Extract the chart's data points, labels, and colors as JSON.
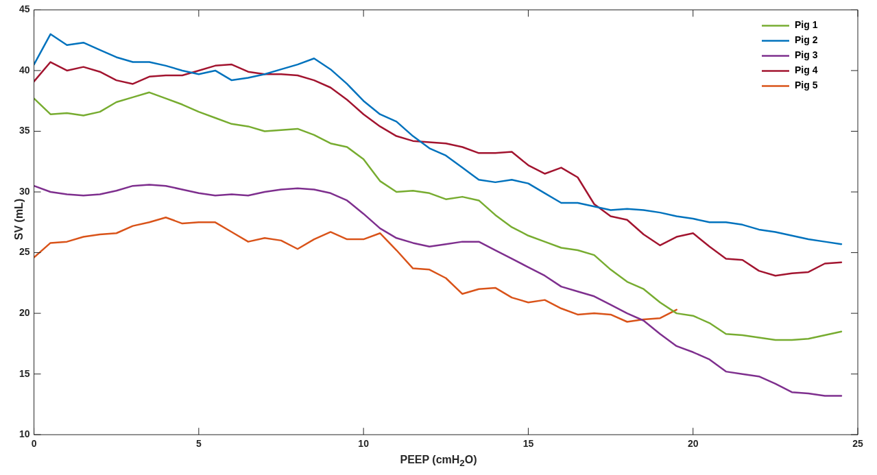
{
  "chart_data": {
    "type": "line",
    "xlabel": "PEEP (cmH$_{2}$O)",
    "ylabel": "SV (mL)",
    "x": [
      0,
      0.5,
      1,
      1.5,
      2,
      2.5,
      3,
      3.5,
      4,
      4.5,
      5,
      5.5,
      6,
      6.5,
      7,
      7.5,
      8,
      8.5,
      9,
      9.5,
      10,
      10.5,
      11,
      11.5,
      12,
      12.5,
      13,
      13.5,
      14,
      14.5,
      15,
      15.5,
      16,
      16.5,
      17,
      17.5,
      18,
      18.5,
      19,
      19.5,
      20,
      20.5,
      21,
      21.5,
      22,
      22.5,
      23,
      23.5,
      24,
      24.5
    ],
    "xlim": [
      0,
      25
    ],
    "xticks": [
      0,
      5,
      10,
      15,
      20,
      25
    ],
    "ylim": [
      10,
      45
    ],
    "yticks": [
      10,
      15,
      20,
      25,
      30,
      35,
      40,
      45
    ],
    "grid": false,
    "legend": "top right",
    "marker": "none",
    "line_style": "solid",
    "series": [
      {
        "name": "Pig 1",
        "color": "#77ac30",
        "values": [
          37.7,
          36.4,
          36.5,
          36.3,
          36.6,
          37.4,
          37.8,
          38.2,
          37.7,
          37.2,
          36.6,
          36.1,
          35.6,
          35.4,
          35.0,
          35.1,
          35.2,
          34.7,
          34.0,
          33.7,
          32.7,
          30.9,
          30.0,
          30.1,
          29.9,
          29.4,
          29.6,
          29.3,
          28.1,
          27.1,
          26.4,
          25.9,
          25.4,
          25.2,
          24.8,
          23.6,
          22.6,
          22.0,
          20.9,
          20.0,
          19.8,
          19.2,
          18.3,
          18.2,
          18.0,
          17.8,
          17.8,
          17.9,
          18.2,
          18.5
        ]
      },
      {
        "name": "Pig 2",
        "color": "#0072bd",
        "values": [
          40.5,
          43.0,
          42.1,
          42.3,
          41.7,
          41.1,
          40.7,
          40.7,
          40.4,
          40.0,
          39.7,
          40.0,
          39.2,
          39.4,
          39.7,
          40.1,
          40.5,
          41.0,
          40.1,
          38.9,
          37.5,
          36.4,
          35.8,
          34.6,
          33.6,
          33.0,
          32.0,
          31.0,
          30.8,
          31.0,
          30.7,
          29.9,
          29.1,
          29.1,
          28.8,
          28.5,
          28.6,
          28.5,
          28.3,
          28.0,
          27.8,
          27.5,
          27.5,
          27.3,
          26.9,
          26.7,
          26.4,
          26.1,
          25.9,
          25.7
        ]
      },
      {
        "name": "Pig 3",
        "color": "#7e2f8e",
        "values": [
          30.5,
          30.0,
          29.8,
          29.7,
          29.8,
          30.1,
          30.5,
          30.6,
          30.5,
          30.2,
          29.9,
          29.7,
          29.8,
          29.7,
          30.0,
          30.2,
          30.3,
          30.2,
          29.9,
          29.3,
          28.2,
          27.0,
          26.2,
          25.8,
          25.5,
          25.7,
          25.9,
          25.9,
          25.2,
          24.5,
          23.8,
          23.1,
          22.2,
          21.8,
          21.4,
          20.7,
          20.0,
          19.4,
          18.3,
          17.3,
          16.8,
          16.2,
          15.2,
          15.0,
          14.8,
          14.2,
          13.5,
          13.4,
          13.2,
          13.2
        ]
      },
      {
        "name": "Pig 4",
        "color": "#a2142f",
        "values": [
          39.1,
          40.7,
          40.0,
          40.3,
          39.9,
          39.2,
          38.9,
          39.5,
          39.6,
          39.6,
          40.0,
          40.4,
          40.5,
          39.9,
          39.7,
          39.7,
          39.6,
          39.2,
          38.6,
          37.6,
          36.4,
          35.4,
          34.6,
          34.2,
          34.1,
          34.0,
          33.7,
          33.2,
          33.2,
          33.3,
          32.2,
          31.5,
          32.0,
          31.2,
          29.0,
          28.0,
          27.7,
          26.5,
          25.6,
          26.3,
          26.6,
          25.5,
          24.5,
          24.4,
          23.5,
          23.1,
          23.3,
          23.4,
          24.1,
          24.2
        ]
      },
      {
        "name": "Pig 5",
        "color": "#d95319",
        "values": [
          24.6,
          25.8,
          25.9,
          26.3,
          26.5,
          26.6,
          27.2,
          27.5,
          27.9,
          27.4,
          27.5,
          27.5,
          26.7,
          25.9,
          26.2,
          26.0,
          25.3,
          26.1,
          26.7,
          26.1,
          26.1,
          26.6,
          25.2,
          23.7,
          23.6,
          22.9,
          21.6,
          22.0,
          22.1,
          21.3,
          20.9,
          21.1,
          20.4,
          19.9,
          20.0,
          19.9,
          19.3,
          19.5,
          19.6,
          20.3,
          null,
          null,
          null,
          null,
          null,
          null,
          null,
          null,
          null,
          null
        ]
      }
    ]
  }
}
